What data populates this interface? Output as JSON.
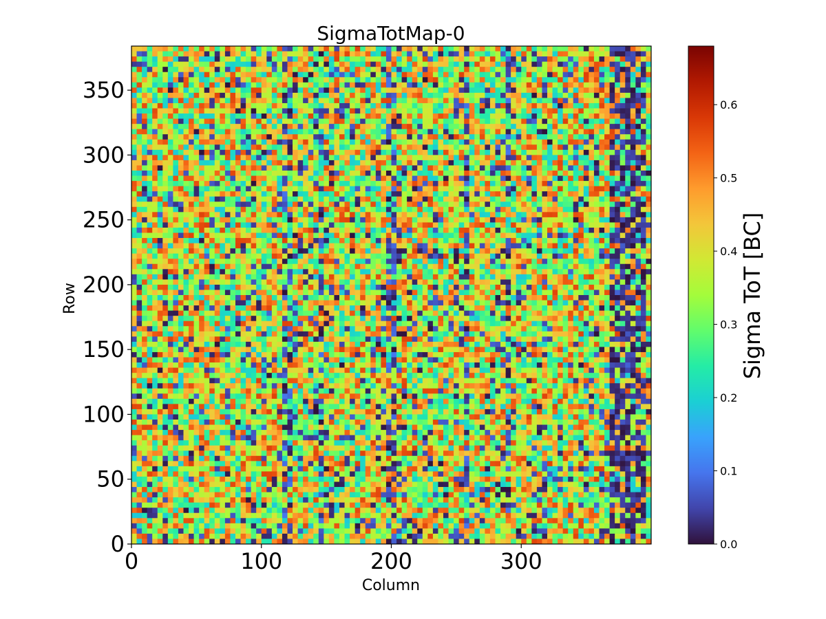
{
  "chart_data": {
    "type": "heatmap",
    "title": "SigmaTotMap-0",
    "xlabel": "Column",
    "ylabel": "Row",
    "xlim": [
      0,
      400
    ],
    "ylim": [
      0,
      384
    ],
    "x_ticks": [
      0,
      100,
      200,
      300
    ],
    "y_ticks": [
      0,
      50,
      100,
      150,
      200,
      250,
      300,
      350
    ],
    "colorbar": {
      "label": "Sigma ToT [BC]",
      "range": [
        0.0,
        0.68
      ],
      "ticks": [
        "0.0",
        "0.1",
        "0.2",
        "0.3",
        "0.4",
        "0.5",
        "0.6"
      ],
      "colormap": "turbo"
    },
    "description_values": {
      "typical_value": 0.38,
      "noise_spread": 0.12,
      "low_value_band_columns": [
        370,
        395
      ],
      "low_value_stripe_columns": [
        120,
        145,
        200,
        258,
        290
      ]
    },
    "colors": {
      "turbo": [
        "#30123b",
        "#4145ab",
        "#4675ed",
        "#39a2fc",
        "#1bcfd4",
        "#24eca6",
        "#61fc6c",
        "#a4fc3b",
        "#d1e834",
        "#f3c63a",
        "#fe9b2d",
        "#f36315",
        "#d93806",
        "#b11901",
        "#7a0402"
      ]
    }
  }
}
